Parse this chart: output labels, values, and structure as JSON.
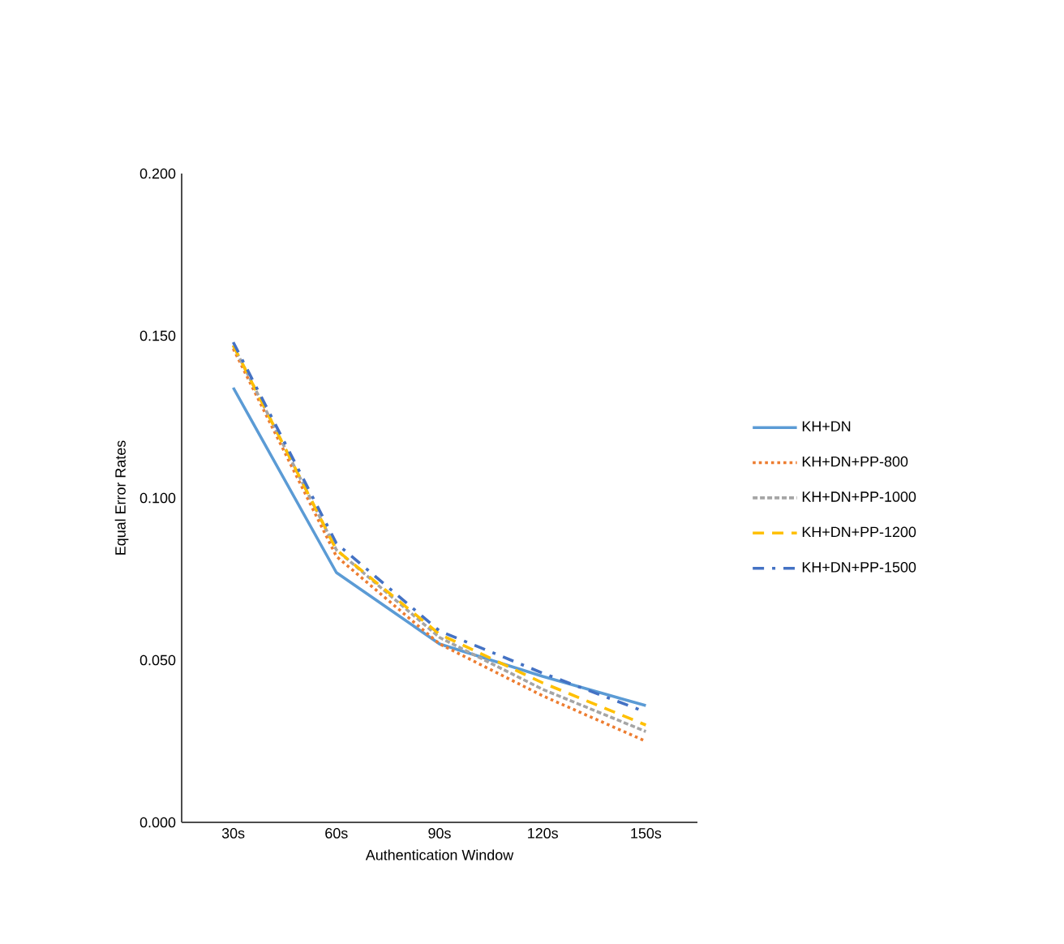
{
  "chart_data": {
    "type": "line",
    "xlabel": "Authentication Window",
    "ylabel": "Equal Error Rates",
    "categories": [
      "30s",
      "60s",
      "90s",
      "120s",
      "150s"
    ],
    "ylim": [
      0,
      0.2
    ],
    "yticks": [
      {
        "value": 0,
        "label": "0.000"
      },
      {
        "value": 0.05,
        "label": "0.050"
      },
      {
        "value": 0.1,
        "label": "0.100"
      },
      {
        "value": 0.15,
        "label": "0.150"
      },
      {
        "value": 0.2,
        "label": "0.200"
      }
    ],
    "legend": "right",
    "grid": false,
    "marker": "none",
    "series": [
      {
        "name": "KH+DN",
        "color": "#5b9bd5",
        "line_style": "solid",
        "values": [
          0.134,
          0.077,
          0.055,
          0.045,
          0.036
        ]
      },
      {
        "name": "KH+DN+PP-800",
        "color": "#ed7d31",
        "line_style": "dotted",
        "values": [
          0.146,
          0.082,
          0.055,
          0.039,
          0.025
        ]
      },
      {
        "name": "KH+DN+PP-1000",
        "color": "#a5a5a5",
        "line_style": "dashed",
        "values": [
          0.147,
          0.084,
          0.057,
          0.041,
          0.028
        ]
      },
      {
        "name": "KH+DN+PP-1200",
        "color": "#ffc000",
        "line_style": "long dashed",
        "values": [
          0.147,
          0.084,
          0.058,
          0.043,
          0.03
        ]
      },
      {
        "name": "KH+DN+PP-1500",
        "color": "#4472c4",
        "line_style": "dash dot",
        "values": [
          0.148,
          0.086,
          0.059,
          0.046,
          0.034
        ]
      }
    ]
  }
}
